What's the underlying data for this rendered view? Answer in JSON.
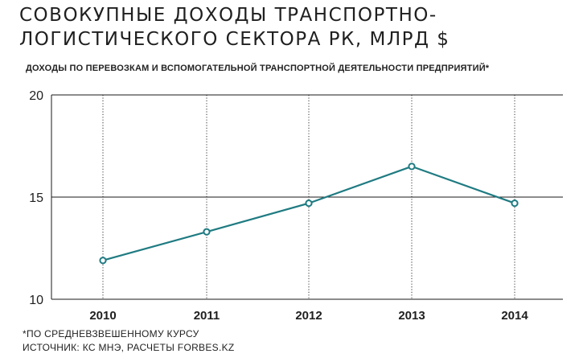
{
  "title": "Совокупные доходы транспортно-логистического сектора РК, млрд $",
  "subtitle": "Доходы по перевозкам и вспомогательной транспортной деятельности предприятий*",
  "footnotes": {
    "note": "*по средневзвешенному курсу",
    "source": "Источник: КС МНЭ, расчеты Forbes.kz"
  },
  "colors": {
    "line": "#1f7b82",
    "marker_fill": "#ffffff",
    "axis": "#1a1a1a",
    "text": "#1f1f1f"
  },
  "chart_data": {
    "type": "line",
    "categories": [
      "2010",
      "2011",
      "2012",
      "2013",
      "2014"
    ],
    "series": [
      {
        "values": [
          11.9,
          13.3,
          14.7,
          16.5,
          14.7
        ]
      }
    ],
    "yticks": [
      "10",
      "15",
      "20"
    ],
    "ylim": [
      10,
      20
    ],
    "grid": "horizontal solid at 15 and 20, vertical dotted at each year",
    "legend": "none"
  }
}
